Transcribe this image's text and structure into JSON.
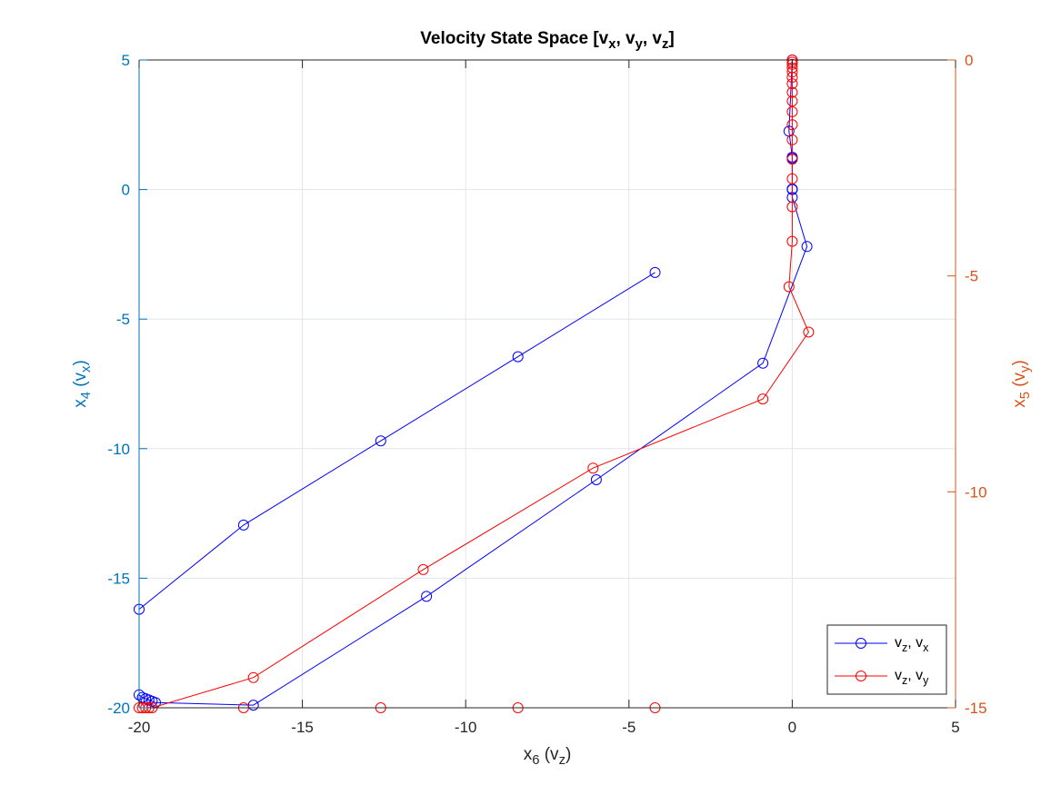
{
  "chart_data": {
    "type": "line",
    "title": "Velocity State Space [v_x, v_y, v_z]",
    "xlabel": "x_6 (v_z)",
    "ylabel_left": "x_4 (v_x)",
    "ylabel_right": "x_5 (v_y)",
    "xlim": [
      -20,
      5
    ],
    "ylim_left": [
      -20,
      5
    ],
    "ylim_right": [
      -15,
      0
    ],
    "xticks": [
      -20,
      -15,
      -10,
      -5,
      0,
      5
    ],
    "yticks_left": [
      -20,
      -15,
      -10,
      -5,
      0,
      5
    ],
    "yticks_right": [
      -15,
      -10,
      -5,
      0
    ],
    "grid": true,
    "legend_position": "bottom-right",
    "colors": {
      "left_axis": "#0072BD",
      "right_axis": "#D95319",
      "series_vx": "#0000FF",
      "series_vy": "#FF0000",
      "grid": "#dfe6ec",
      "box": "#262626"
    },
    "series": [
      {
        "name": "v_z, v_x",
        "axis": "left",
        "color": "#0000FF",
        "x": [
          -4.2,
          -8.4,
          -12.6,
          -16.8,
          -20.0,
          -20.0,
          -19.9,
          -19.8,
          -19.7,
          -19.6,
          -19.5,
          -16.5,
          -11.2,
          -6.0,
          -0.9,
          0.45,
          0.0,
          0.0,
          0.0,
          0.0,
          0.0,
          -0.1,
          0.0
        ],
        "y": [
          -3.2,
          -6.45,
          -9.7,
          -12.95,
          -16.2,
          -19.5,
          -19.6,
          -19.65,
          -19.7,
          -19.75,
          -19.8,
          -19.9,
          -15.7,
          -11.2,
          -6.7,
          -2.2,
          -0.3,
          0.0,
          0.02,
          1.2,
          1.25,
          2.25,
          5.0
        ]
      },
      {
        "name": "v_z, v_y",
        "axis": "right",
        "color": "#FF0000",
        "x": [
          -4.2,
          -8.4,
          -12.6,
          -16.8,
          -20.0,
          -19.9,
          -19.8,
          -19.7,
          -19.6,
          -16.5,
          -11.3,
          -6.1,
          -0.9,
          0.5,
          -0.1,
          0.0,
          0.0,
          0.0,
          0.0,
          0.0,
          0.0,
          0.0,
          0.0,
          0.0,
          0.0,
          0.0,
          0.0,
          0.0,
          0.0,
          0.0,
          0.0
        ],
        "y": [
          -15.0,
          -15.0,
          -15.0,
          -15.0,
          -15.0,
          -15.0,
          -15.0,
          -15.0,
          -15.0,
          -14.3,
          -11.8,
          -9.45,
          -7.85,
          -6.3,
          -5.25,
          -4.2,
          -3.4,
          -2.75,
          -2.3,
          -1.85,
          -1.5,
          -1.2,
          -0.95,
          -0.75,
          -0.55,
          -0.4,
          -0.28,
          -0.18,
          -0.1,
          -0.05,
          0.0
        ]
      }
    ],
    "legend": [
      {
        "label": "v_z, v_x",
        "color": "#0000FF"
      },
      {
        "label": "v_z, v_y",
        "color": "#FF0000"
      }
    ]
  }
}
